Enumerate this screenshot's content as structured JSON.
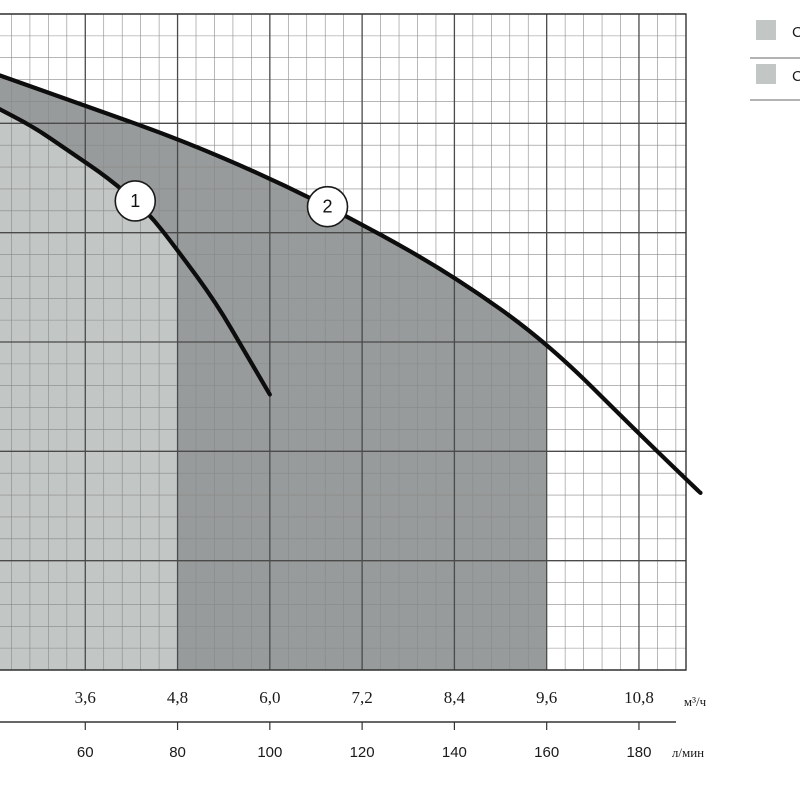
{
  "chart_data": {
    "type": "line",
    "x_axis_primary": {
      "unit": "м³/ч",
      "ticks": [
        "3,6",
        "4,8",
        "6,0",
        "7,2",
        "8,4",
        "9,6",
        "10,8"
      ],
      "range": [
        2.4,
        11.7
      ]
    },
    "x_axis_secondary": {
      "unit": "л/мин",
      "ticks": [
        "60",
        "80",
        "100",
        "120",
        "140",
        "160",
        "180"
      ],
      "range": [
        40,
        195
      ]
    },
    "grid": true,
    "series": [
      {
        "name": "1",
        "x": [
          2.4,
          2.9,
          3.4,
          3.9,
          4.4,
          4.8,
          5.3,
          5.7,
          6.0
        ],
        "y": [
          0.86,
          0.83,
          0.79,
          0.75,
          0.7,
          0.64,
          0.56,
          0.48,
          0.42
        ]
      },
      {
        "name": "2",
        "x": [
          2.4,
          3.6,
          4.8,
          6.0,
          7.2,
          8.4,
          9.6,
          10.8,
          11.6
        ],
        "y": [
          0.91,
          0.86,
          0.81,
          0.75,
          0.68,
          0.6,
          0.5,
          0.36,
          0.27
        ]
      }
    ],
    "shaded_ranges": [
      {
        "series": "1",
        "x_end": 4.8,
        "color": "#c2c6c5"
      },
      {
        "series": "2",
        "x_end": 9.6,
        "color": "#979b9b"
      }
    ],
    "legend": {
      "placement": "top-right",
      "swatch_colors": [
        "#c2c6c5",
        "#c2c6c5"
      ],
      "entries": [
        "C",
        "C"
      ]
    }
  }
}
